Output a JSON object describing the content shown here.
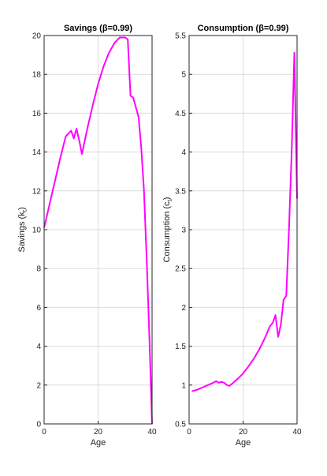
{
  "chart_data": [
    {
      "type": "line",
      "title": "Savings (β=0.99)",
      "xlabel": "Age",
      "ylabel_main": "Savings (k",
      "ylabel_sub": "t",
      "ylabel_end": ")",
      "xlim": [
        0,
        40
      ],
      "ylim": [
        0,
        20
      ],
      "xticks": [
        0,
        20,
        40
      ],
      "yticks": [
        0,
        2,
        4,
        6,
        8,
        10,
        12,
        14,
        16,
        18,
        20
      ],
      "color": "#ff00ff",
      "x": [
        0,
        2,
        4,
        6,
        8,
        10,
        11,
        12,
        13,
        14,
        16,
        18,
        20,
        22,
        24,
        26,
        28,
        29,
        30,
        31,
        32,
        33,
        34,
        35,
        36,
        37,
        38,
        39,
        40
      ],
      "y": [
        10.1,
        11.3,
        12.5,
        13.7,
        14.8,
        15.1,
        14.7,
        15.2,
        14.6,
        13.9,
        15.2,
        16.4,
        17.5,
        18.4,
        19.1,
        19.6,
        19.9,
        19.9,
        19.9,
        19.8,
        16.9,
        16.8,
        16.3,
        15.8,
        14.2,
        12.0,
        8.5,
        4.5,
        0.0
      ]
    },
    {
      "type": "line",
      "title": "Consumption (β=0.99)",
      "xlabel": "Age",
      "ylabel_main": "Consumption (c",
      "ylabel_sub": "t",
      "ylabel_end": ")",
      "xlim": [
        0,
        40
      ],
      "ylim": [
        0.5,
        5.5
      ],
      "xticks": [
        0,
        20,
        40
      ],
      "yticks": [
        0.5,
        1,
        1.5,
        2,
        2.5,
        3,
        3.5,
        4,
        4.5,
        5,
        5.5
      ],
      "color": "#ff00ff",
      "x": [
        1,
        3,
        5,
        7,
        9,
        10,
        11,
        12,
        13,
        14,
        15,
        16,
        18,
        20,
        22,
        24,
        26,
        28,
        29,
        30,
        31,
        32,
        33,
        34,
        35,
        36,
        37,
        38,
        39,
        40
      ],
      "y": [
        0.92,
        0.94,
        0.97,
        1.0,
        1.03,
        1.05,
        1.03,
        1.04,
        1.03,
        1.0,
        0.99,
        1.02,
        1.08,
        1.15,
        1.24,
        1.34,
        1.46,
        1.6,
        1.68,
        1.76,
        1.8,
        1.9,
        1.62,
        1.78,
        2.1,
        2.15,
        3.0,
        4.0,
        5.28,
        3.4
      ]
    }
  ]
}
